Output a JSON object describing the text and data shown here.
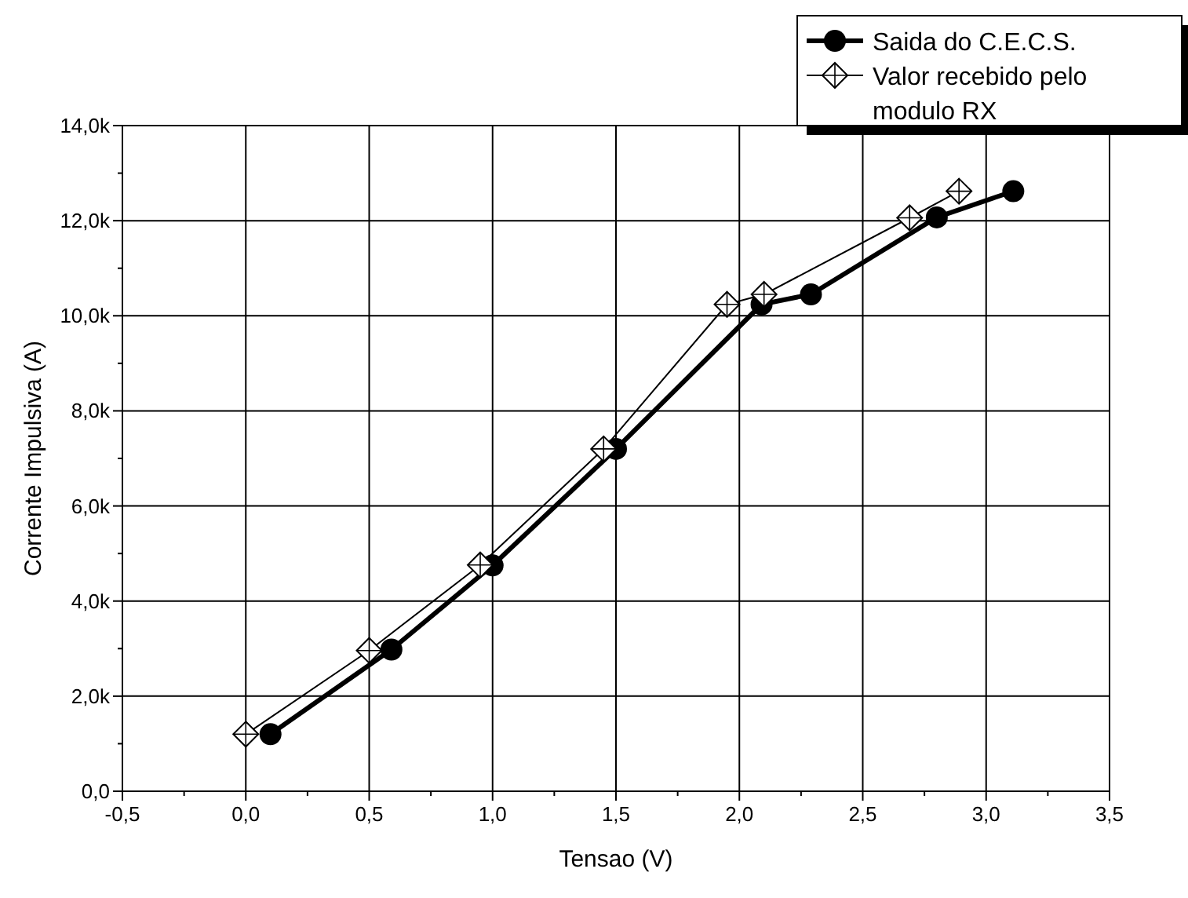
{
  "chart_data": {
    "type": "line",
    "xlabel": "Tensao (V)",
    "ylabel": "Corrente Impulsiva (A)",
    "xlim": [
      -0.5,
      3.5
    ],
    "ylim": [
      0,
      14000
    ],
    "xticks": [
      {
        "value": -0.5,
        "label": "-0,5"
      },
      {
        "value": -0.25,
        "label": null
      },
      {
        "value": 0,
        "label": "0,0"
      },
      {
        "value": 0.25,
        "label": null
      },
      {
        "value": 0.5,
        "label": "0,5"
      },
      {
        "value": 0.75,
        "label": null
      },
      {
        "value": 1,
        "label": "1,0"
      },
      {
        "value": 1.25,
        "label": null
      },
      {
        "value": 1.5,
        "label": "1,5"
      },
      {
        "value": 1.75,
        "label": null
      },
      {
        "value": 2,
        "label": "2,0"
      },
      {
        "value": 2.25,
        "label": null
      },
      {
        "value": 2.5,
        "label": "2,5"
      },
      {
        "value": 2.75,
        "label": null
      },
      {
        "value": 3,
        "label": "3,0"
      },
      {
        "value": 3.25,
        "label": null
      },
      {
        "value": 3.5,
        "label": "3,5"
      }
    ],
    "yticks": [
      {
        "value": 0,
        "label": "0,0"
      },
      {
        "value": 1000,
        "label": null
      },
      {
        "value": 2000,
        "label": "2,0k"
      },
      {
        "value": 3000,
        "label": null
      },
      {
        "value": 4000,
        "label": "4,0k"
      },
      {
        "value": 5000,
        "label": null
      },
      {
        "value": 6000,
        "label": "6,0k"
      },
      {
        "value": 7000,
        "label": null
      },
      {
        "value": 8000,
        "label": "8,0k"
      },
      {
        "value": 9000,
        "label": null
      },
      {
        "value": 10000,
        "label": "10,0k"
      },
      {
        "value": 11000,
        "label": null
      },
      {
        "value": 12000,
        "label": "12,0k"
      },
      {
        "value": 13000,
        "label": null
      },
      {
        "value": 14000,
        "label": "14,0k"
      }
    ],
    "grid": true,
    "legend": "top right",
    "series": [
      {
        "name": "Saida do C.E.C.S.",
        "color": "#000000",
        "marker": "circle",
        "x": [
          0.1,
          0.59,
          1.0,
          1.5,
          2.09,
          2.29,
          2.8,
          3.11
        ],
        "values": [
          1200,
          2980,
          4750,
          7200,
          10240,
          10450,
          12070,
          12620
        ]
      },
      {
        "name": "Valor recebido pelo modulo RX",
        "color": "#000000",
        "marker": "diamond",
        "x": [
          0.0,
          0.5,
          0.95,
          1.45,
          1.95,
          2.1,
          2.69,
          2.89
        ],
        "values": [
          1200,
          2960,
          4760,
          7200,
          10240,
          10450,
          12060,
          12620
        ]
      }
    ]
  }
}
